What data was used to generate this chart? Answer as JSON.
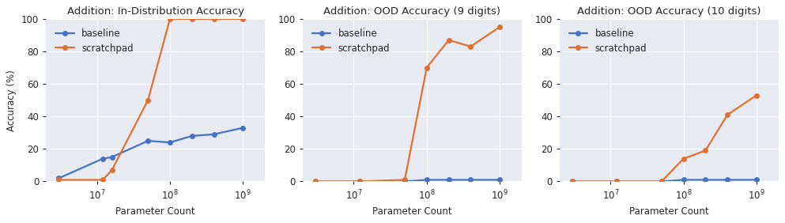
{
  "charts": [
    {
      "title": "Addition: In-Distribution Accuracy",
      "baseline_x": [
        3000000.0,
        12000000.0,
        16000000.0,
        50000000.0,
        100000000.0,
        200000000.0,
        400000000.0,
        1000000000.0
      ],
      "baseline_y": [
        2,
        14,
        15,
        25,
        24,
        28,
        29,
        33
      ],
      "scratchpad_x": [
        3000000.0,
        12000000.0,
        16000000.0,
        50000000.0,
        100000000.0,
        200000000.0,
        400000000.0,
        1000000000.0
      ],
      "scratchpad_y": [
        1,
        1,
        7,
        50,
        100,
        100,
        100,
        100
      ],
      "ylabel": "Accuracy (%)",
      "legend_pos": "upper left"
    },
    {
      "title": "Addition: OOD Accuracy (9 digits)",
      "baseline_x": [
        3000000.0,
        12000000.0,
        50000000.0,
        100000000.0,
        200000000.0,
        400000000.0,
        1000000000.0
      ],
      "baseline_y": [
        0,
        0,
        0,
        1,
        1,
        1,
        1
      ],
      "scratchpad_x": [
        3000000.0,
        12000000.0,
        50000000.0,
        100000000.0,
        200000000.0,
        400000000.0,
        1000000000.0
      ],
      "scratchpad_y": [
        0,
        0,
        1,
        70,
        87,
        83,
        95
      ],
      "ylabel": "",
      "legend_pos": "upper left"
    },
    {
      "title": "Addition: OOD Accuracy (10 digits)",
      "baseline_x": [
        3000000.0,
        12000000.0,
        50000000.0,
        100000000.0,
        200000000.0,
        400000000.0,
        1000000000.0
      ],
      "baseline_y": [
        0,
        0,
        0,
        1,
        1,
        1,
        1
      ],
      "scratchpad_x": [
        3000000.0,
        12000000.0,
        50000000.0,
        100000000.0,
        200000000.0,
        400000000.0,
        1000000000.0
      ],
      "scratchpad_y": [
        0,
        0,
        0,
        14,
        19,
        41,
        53
      ],
      "ylabel": "",
      "legend_pos": "upper left"
    }
  ],
  "xlabel": "Parameter Count",
  "baseline_color": "#4472c4",
  "scratchpad_color": "#e07030",
  "ylim": [
    0,
    100
  ],
  "yticks": [
    0,
    20,
    40,
    60,
    80,
    100
  ],
  "axes_facecolor": "#e8eaf2",
  "figure_facecolor": "#ffffff",
  "grid_color": "#ffffff",
  "legend_labels": [
    "baseline",
    "scratchpad"
  ],
  "title_fontsize": 9.5,
  "label_fontsize": 8.5,
  "tick_fontsize": 8.5,
  "legend_fontsize": 8.5,
  "marker_size": 4,
  "linewidth": 1.6
}
